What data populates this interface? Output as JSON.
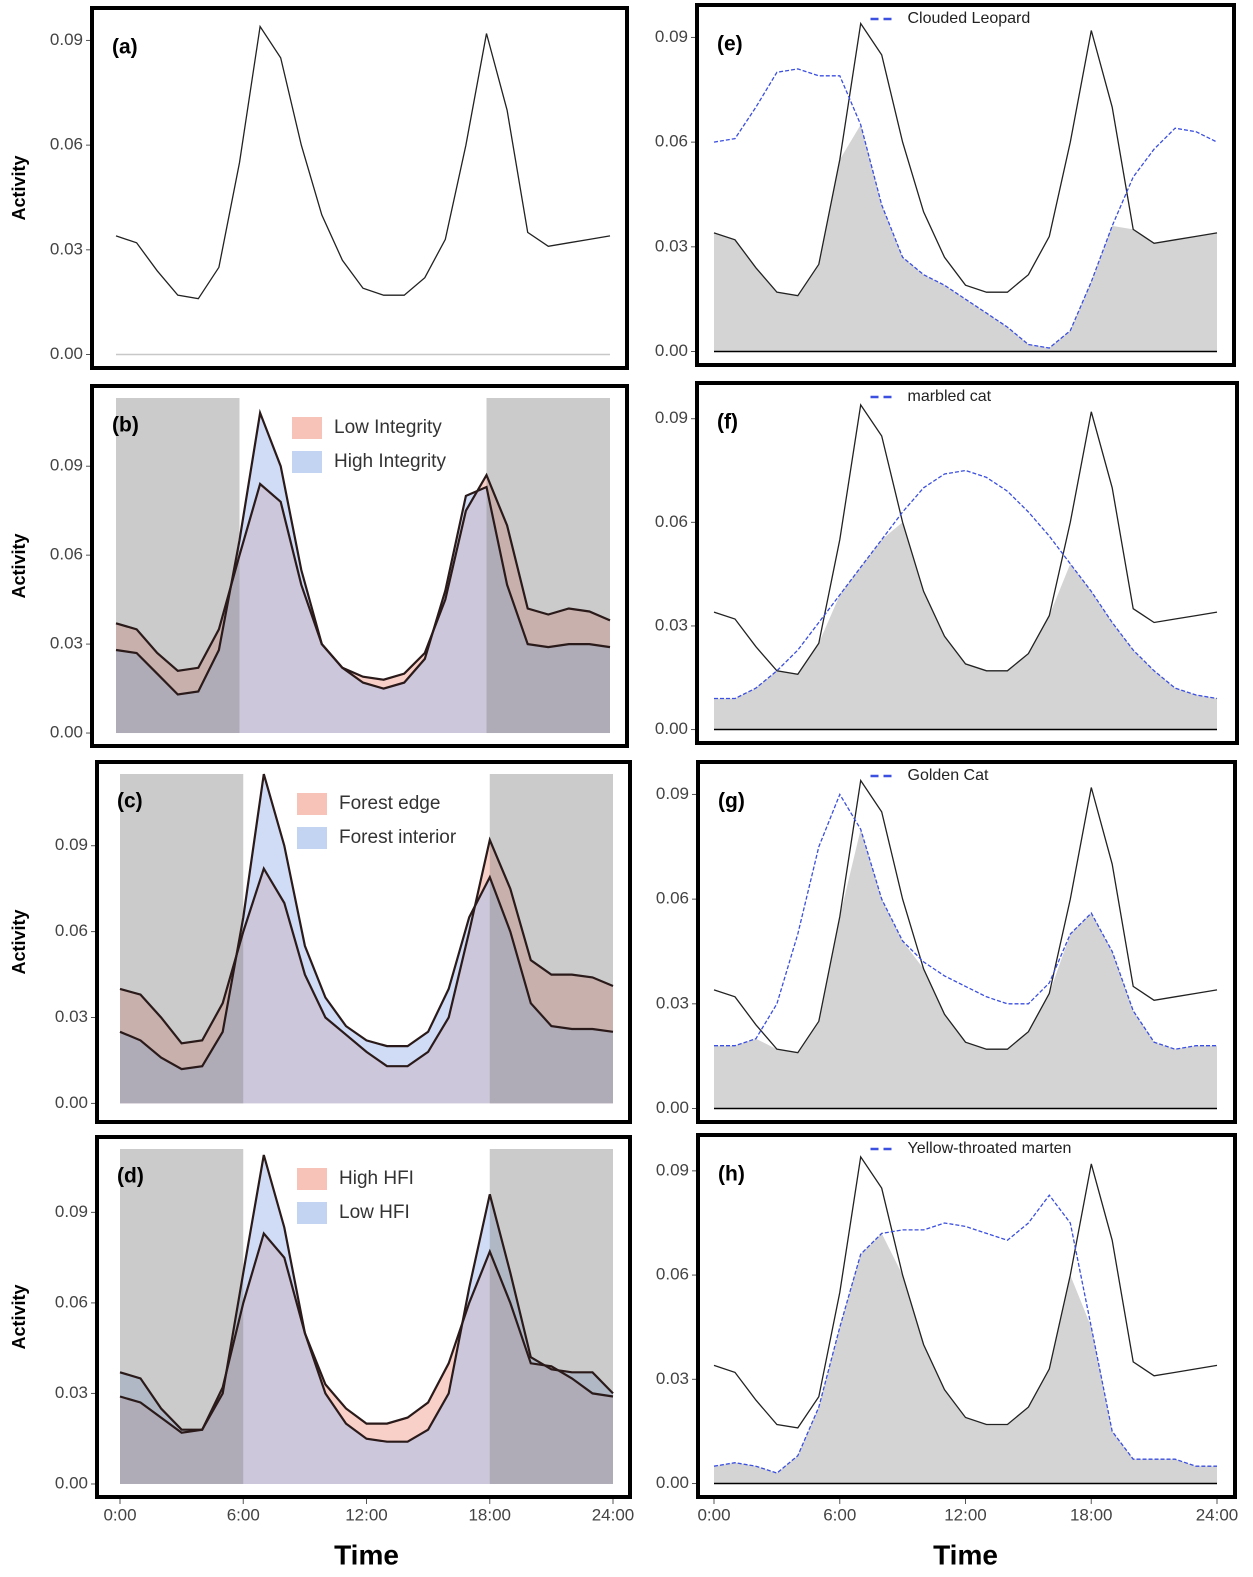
{
  "chart_data": [
    {
      "type": "area",
      "panel_label": "(a)",
      "ylabel": "Activity",
      "xlim": [
        0,
        24
      ],
      "ylim": [
        -0.001,
        0.095
      ],
      "yticks": [
        {
          "value": 0,
          "label": "0.00"
        },
        {
          "value": 0.03,
          "label": "0.03"
        },
        {
          "value": 0.06,
          "label": "0.06"
        },
        {
          "value": 0.09,
          "label": "0.09"
        }
      ],
      "baseline_color": "#c8c8c8",
      "line_color": "#222222",
      "x": [
        0,
        1,
        2,
        3,
        4,
        5,
        6,
        7,
        8,
        9,
        10,
        11,
        12,
        13,
        14,
        15,
        16,
        17,
        18,
        19,
        20,
        21,
        22,
        23,
        24
      ],
      "series": [
        {
          "color": "#222222",
          "values": [
            0.034,
            0.032,
            0.024,
            0.017,
            0.016,
            0.025,
            0.055,
            0.094,
            0.085,
            0.06,
            0.04,
            0.027,
            0.019,
            0.017,
            0.017,
            0.022,
            0.033,
            0.06,
            0.092,
            0.07,
            0.035,
            0.031,
            0.032,
            0.033,
            0.034
          ]
        }
      ]
    },
    {
      "type": "area",
      "panel_label": "(b)",
      "ylabel": "Activity",
      "xlim": [
        0,
        24
      ],
      "ylim": [
        -0.001,
        0.112
      ],
      "yticks": [
        {
          "value": 0,
          "label": "0.00"
        },
        {
          "value": 0.03,
          "label": "0.03"
        },
        {
          "value": 0.06,
          "label": "0.06"
        },
        {
          "value": 0.09,
          "label": "0.09"
        }
      ],
      "shade": [
        [
          0,
          6
        ],
        [
          18,
          24
        ]
      ],
      "shade_color": "#8c8c8c",
      "line_color": "#2a1a1a",
      "legend": "top-center",
      "x": [
        0,
        1,
        2,
        3,
        4,
        5,
        6,
        7,
        8,
        9,
        10,
        11,
        12,
        13,
        14,
        15,
        16,
        17,
        18,
        19,
        20,
        21,
        22,
        23,
        24
      ],
      "series": [
        {
          "name": "Low Integrity",
          "color": "#f4a99a",
          "values": [
            0.037,
            0.035,
            0.027,
            0.021,
            0.022,
            0.035,
            0.06,
            0.084,
            0.078,
            0.05,
            0.03,
            0.022,
            0.019,
            0.018,
            0.02,
            0.027,
            0.045,
            0.075,
            0.087,
            0.07,
            0.042,
            0.04,
            0.042,
            0.041,
            0.038
          ]
        },
        {
          "name": "High Integrity",
          "color": "#a9c0ec",
          "values": [
            0.028,
            0.027,
            0.02,
            0.013,
            0.014,
            0.028,
            0.065,
            0.108,
            0.09,
            0.055,
            0.03,
            0.022,
            0.017,
            0.015,
            0.017,
            0.025,
            0.048,
            0.08,
            0.083,
            0.05,
            0.03,
            0.029,
            0.03,
            0.03,
            0.029
          ]
        }
      ]
    },
    {
      "type": "area",
      "panel_label": "(c)",
      "ylabel": "Activity",
      "xlim": [
        0,
        24
      ],
      "ylim": [
        -0.003,
        0.114
      ],
      "yticks": [
        {
          "value": 0,
          "label": "0.00"
        },
        {
          "value": 0.03,
          "label": "0.03"
        },
        {
          "value": 0.06,
          "label": "0.06"
        },
        {
          "value": 0.09,
          "label": "0.09"
        }
      ],
      "shade": [
        [
          0,
          6
        ],
        [
          18,
          24
        ]
      ],
      "shade_color": "#8c8c8c",
      "line_color": "#2a1a1a",
      "legend": "top-center",
      "x": [
        0,
        1,
        2,
        3,
        4,
        5,
        6,
        7,
        8,
        9,
        10,
        11,
        12,
        13,
        14,
        15,
        16,
        17,
        18,
        19,
        20,
        21,
        22,
        23,
        24
      ],
      "series": [
        {
          "name": "Forest edge",
          "color": "#f4a99a",
          "values": [
            0.04,
            0.038,
            0.03,
            0.021,
            0.022,
            0.035,
            0.06,
            0.082,
            0.07,
            0.045,
            0.03,
            0.024,
            0.018,
            0.013,
            0.013,
            0.018,
            0.03,
            0.06,
            0.092,
            0.075,
            0.05,
            0.045,
            0.045,
            0.044,
            0.041
          ]
        },
        {
          "name": "Forest interior",
          "color": "#a9c0ec",
          "values": [
            0.025,
            0.022,
            0.016,
            0.012,
            0.013,
            0.025,
            0.065,
            0.115,
            0.09,
            0.055,
            0.037,
            0.027,
            0.022,
            0.02,
            0.02,
            0.025,
            0.04,
            0.065,
            0.079,
            0.06,
            0.035,
            0.027,
            0.026,
            0.026,
            0.025
          ]
        }
      ]
    },
    {
      "type": "area",
      "panel_label": "(d)",
      "ylabel": "Activity",
      "xlabel": "Time",
      "xlim": [
        0,
        24
      ],
      "ylim": [
        -0.001,
        0.11
      ],
      "yticks": [
        {
          "value": 0,
          "label": "0.00"
        },
        {
          "value": 0.03,
          "label": "0.03"
        },
        {
          "value": 0.06,
          "label": "0.06"
        },
        {
          "value": 0.09,
          "label": "0.09"
        }
      ],
      "xticks": [
        {
          "value": 0,
          "label": "0:00"
        },
        {
          "value": 6,
          "label": "6:00"
        },
        {
          "value": 12,
          "label": "12:00"
        },
        {
          "value": 18,
          "label": "18:00"
        },
        {
          "value": 24,
          "label": "24:00"
        }
      ],
      "shade": [
        [
          0,
          6
        ],
        [
          18,
          24
        ]
      ],
      "shade_color": "#8c8c8c",
      "line_color": "#2a1a1a",
      "legend": "top-center",
      "x": [
        0,
        1,
        2,
        3,
        4,
        5,
        6,
        7,
        8,
        9,
        10,
        11,
        12,
        13,
        14,
        15,
        16,
        17,
        18,
        19,
        20,
        21,
        22,
        23,
        24
      ],
      "series": [
        {
          "name": "High HFI",
          "color": "#f4a99a",
          "values": [
            0.029,
            0.027,
            0.022,
            0.017,
            0.018,
            0.032,
            0.06,
            0.083,
            0.075,
            0.05,
            0.033,
            0.025,
            0.02,
            0.02,
            0.022,
            0.027,
            0.04,
            0.06,
            0.077,
            0.06,
            0.04,
            0.039,
            0.035,
            0.03,
            0.029
          ]
        },
        {
          "name": "Low HFI",
          "color": "#a9c0ec",
          "values": [
            0.037,
            0.035,
            0.025,
            0.018,
            0.018,
            0.03,
            0.07,
            0.109,
            0.085,
            0.05,
            0.03,
            0.02,
            0.015,
            0.014,
            0.014,
            0.018,
            0.03,
            0.065,
            0.096,
            0.07,
            0.042,
            0.038,
            0.037,
            0.037,
            0.03
          ]
        }
      ]
    },
    {
      "type": "overlap",
      "panel_label": "(e)",
      "xlim": [
        0,
        24
      ],
      "ylim": [
        -0.001,
        0.095
      ],
      "yticks": [
        {
          "value": 0,
          "label": "0.00"
        },
        {
          "value": 0.03,
          "label": "0.03"
        },
        {
          "value": 0.06,
          "label": "0.06"
        },
        {
          "value": 0.09,
          "label": "0.09"
        }
      ],
      "overlap_fill": "#d4d4d4",
      "baseline_color": "#000000",
      "legend": "top-center",
      "x": [
        0,
        1,
        2,
        3,
        4,
        5,
        6,
        7,
        8,
        9,
        10,
        11,
        12,
        13,
        14,
        15,
        16,
        17,
        18,
        19,
        20,
        21,
        22,
        23,
        24
      ],
      "series": [
        {
          "color": "#222222",
          "values": [
            0.034,
            0.032,
            0.024,
            0.017,
            0.016,
            0.025,
            0.055,
            0.094,
            0.085,
            0.06,
            0.04,
            0.027,
            0.019,
            0.017,
            0.017,
            0.022,
            0.033,
            0.06,
            0.092,
            0.07,
            0.035,
            0.031,
            0.032,
            0.033,
            0.034
          ]
        },
        {
          "name": "Clouded Leopard",
          "color": "#3b4fe0",
          "style": "dashed",
          "values": [
            0.06,
            0.061,
            0.07,
            0.08,
            0.081,
            0.079,
            0.079,
            0.065,
            0.042,
            0.027,
            0.022,
            0.019,
            0.015,
            0.011,
            0.007,
            0.002,
            0.001,
            0.006,
            0.02,
            0.036,
            0.05,
            0.058,
            0.064,
            0.063,
            0.06
          ]
        }
      ]
    },
    {
      "type": "overlap",
      "panel_label": "(f)",
      "xlim": [
        0,
        24
      ],
      "ylim": [
        -0.001,
        0.096
      ],
      "yticks": [
        {
          "value": 0,
          "label": "0.00"
        },
        {
          "value": 0.03,
          "label": "0.03"
        },
        {
          "value": 0.06,
          "label": "0.06"
        },
        {
          "value": 0.09,
          "label": "0.09"
        }
      ],
      "overlap_fill": "#d4d4d4",
      "baseline_color": "#000000",
      "legend": "top-center",
      "x": [
        0,
        1,
        2,
        3,
        4,
        5,
        6,
        7,
        8,
        9,
        10,
        11,
        12,
        13,
        14,
        15,
        16,
        17,
        18,
        19,
        20,
        21,
        22,
        23,
        24
      ],
      "series": [
        {
          "color": "#222222",
          "values": [
            0.034,
            0.032,
            0.024,
            0.017,
            0.016,
            0.025,
            0.055,
            0.094,
            0.085,
            0.06,
            0.04,
            0.027,
            0.019,
            0.017,
            0.017,
            0.022,
            0.033,
            0.06,
            0.092,
            0.07,
            0.035,
            0.031,
            0.032,
            0.033,
            0.034
          ]
        },
        {
          "name": "marbled cat",
          "color": "#3b4fe0",
          "style": "dashed",
          "values": [
            0.009,
            0.009,
            0.012,
            0.017,
            0.023,
            0.031,
            0.039,
            0.047,
            0.055,
            0.063,
            0.07,
            0.074,
            0.075,
            0.073,
            0.069,
            0.063,
            0.056,
            0.048,
            0.04,
            0.031,
            0.023,
            0.017,
            0.012,
            0.01,
            0.009
          ]
        }
      ]
    },
    {
      "type": "overlap",
      "panel_label": "(g)",
      "xlim": [
        0,
        24
      ],
      "ylim": [
        -0.001,
        0.095
      ],
      "yticks": [
        {
          "value": 0,
          "label": "0.00"
        },
        {
          "value": 0.03,
          "label": "0.03"
        },
        {
          "value": 0.06,
          "label": "0.06"
        },
        {
          "value": 0.09,
          "label": "0.09"
        }
      ],
      "overlap_fill": "#d4d4d4",
      "baseline_color": "#000000",
      "legend": "top-center",
      "x": [
        0,
        1,
        2,
        3,
        4,
        5,
        6,
        7,
        8,
        9,
        10,
        11,
        12,
        13,
        14,
        15,
        16,
        17,
        18,
        19,
        20,
        21,
        22,
        23,
        24
      ],
      "series": [
        {
          "color": "#222222",
          "values": [
            0.034,
            0.032,
            0.024,
            0.017,
            0.016,
            0.025,
            0.055,
            0.094,
            0.085,
            0.06,
            0.04,
            0.027,
            0.019,
            0.017,
            0.017,
            0.022,
            0.033,
            0.06,
            0.092,
            0.07,
            0.035,
            0.031,
            0.032,
            0.033,
            0.034
          ]
        },
        {
          "name": "Golden Cat",
          "color": "#3b4fe0",
          "style": "dashed",
          "values": [
            0.018,
            0.018,
            0.02,
            0.03,
            0.05,
            0.075,
            0.09,
            0.08,
            0.06,
            0.048,
            0.042,
            0.038,
            0.035,
            0.032,
            0.03,
            0.03,
            0.036,
            0.05,
            0.056,
            0.045,
            0.028,
            0.019,
            0.017,
            0.018,
            0.018
          ]
        }
      ]
    },
    {
      "type": "overlap",
      "panel_label": "(h)",
      "xlabel": "Time",
      "xlim": [
        0,
        24
      ],
      "ylim": [
        -0.001,
        0.096
      ],
      "yticks": [
        {
          "value": 0,
          "label": "0.00"
        },
        {
          "value": 0.03,
          "label": "0.03"
        },
        {
          "value": 0.06,
          "label": "0.06"
        },
        {
          "value": 0.09,
          "label": "0.09"
        }
      ],
      "xticks": [
        {
          "value": 0,
          "label": "0:00"
        },
        {
          "value": 6,
          "label": "6:00"
        },
        {
          "value": 12,
          "label": "12:00"
        },
        {
          "value": 18,
          "label": "18:00"
        },
        {
          "value": 24,
          "label": "24:00"
        }
      ],
      "overlap_fill": "#d4d4d4",
      "baseline_color": "#000000",
      "legend": "top-center",
      "x": [
        0,
        1,
        2,
        3,
        4,
        5,
        6,
        7,
        8,
        9,
        10,
        11,
        12,
        13,
        14,
        15,
        16,
        17,
        18,
        19,
        20,
        21,
        22,
        23,
        24
      ],
      "series": [
        {
          "color": "#222222",
          "values": [
            0.034,
            0.032,
            0.024,
            0.017,
            0.016,
            0.025,
            0.055,
            0.094,
            0.085,
            0.06,
            0.04,
            0.027,
            0.019,
            0.017,
            0.017,
            0.022,
            0.033,
            0.06,
            0.092,
            0.07,
            0.035,
            0.031,
            0.032,
            0.033,
            0.034
          ]
        },
        {
          "name": "Yellow-throated marten",
          "color": "#3b4fe0",
          "style": "dashed",
          "values": [
            0.005,
            0.006,
            0.005,
            0.003,
            0.008,
            0.022,
            0.045,
            0.066,
            0.072,
            0.073,
            0.073,
            0.075,
            0.074,
            0.072,
            0.07,
            0.075,
            0.083,
            0.075,
            0.045,
            0.015,
            0.007,
            0.007,
            0.007,
            0.005,
            0.005
          ]
        }
      ]
    }
  ]
}
